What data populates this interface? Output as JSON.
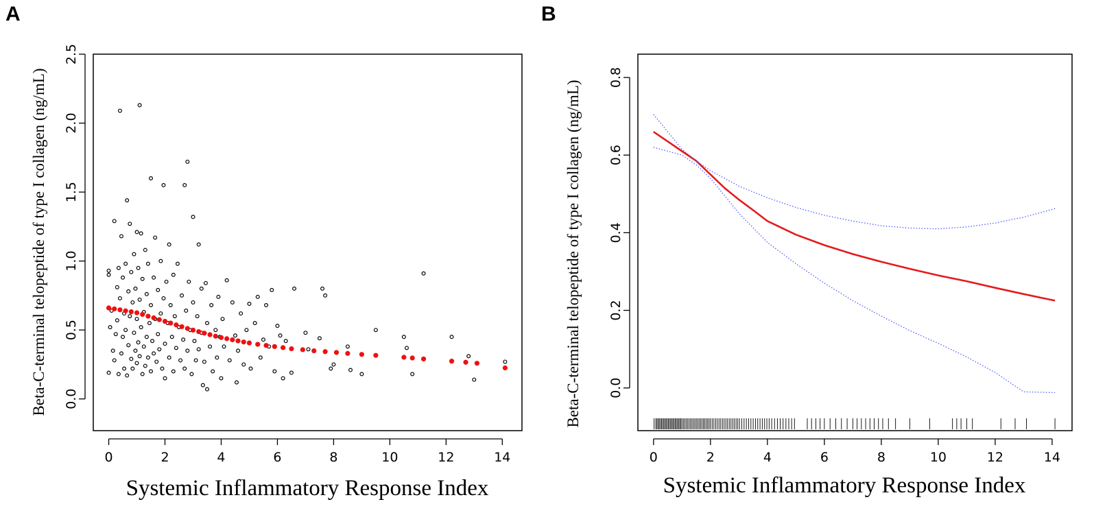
{
  "panels": {
    "a": {
      "label": "A"
    },
    "b": {
      "label": "B"
    }
  },
  "colors": {
    "fit": "#e41a1c",
    "ci": "#4f5bff",
    "points": "#000000",
    "fitted_points": "#ee1111",
    "axis": "#000000"
  },
  "chart_data": [
    {
      "type": "scatter",
      "panel": "A",
      "xlabel": "Systemic Inflammatory Response Index",
      "ylabel": "Beta-C-terminal telopeptide of type I collagen (ng/mL)",
      "xlim": [
        -0.55,
        14.7
      ],
      "ylim": [
        -0.23,
        2.5
      ],
      "xticks": [
        0,
        2,
        4,
        6,
        8,
        10,
        12,
        14
      ],
      "yticks": [
        0.0,
        0.5,
        1.0,
        1.5,
        2.0,
        2.5
      ],
      "ytick_labels": [
        "0.0",
        "0.5",
        "1.0",
        "1.5",
        "2.0",
        "2.5"
      ],
      "series": [
        {
          "name": "observed",
          "marker": "open-circle",
          "points": [
            [
              0.0,
              0.93
            ],
            [
              0.0,
              0.9
            ],
            [
              0.0,
              0.19
            ],
            [
              0.05,
              0.52
            ],
            [
              0.1,
              0.64
            ],
            [
              0.15,
              0.35
            ],
            [
              0.2,
              1.29
            ],
            [
              0.2,
              0.28
            ],
            [
              0.25,
              0.47
            ],
            [
              0.3,
              0.81
            ],
            [
              0.3,
              0.57
            ],
            [
              0.35,
              0.95
            ],
            [
              0.35,
              0.18
            ],
            [
              0.4,
              2.09
            ],
            [
              0.4,
              0.73
            ],
            [
              0.45,
              1.18
            ],
            [
              0.45,
              0.33
            ],
            [
              0.5,
              0.88
            ],
            [
              0.5,
              0.45
            ],
            [
              0.55,
              0.62
            ],
            [
              0.55,
              0.22
            ],
            [
              0.6,
              0.98
            ],
            [
              0.6,
              0.5
            ],
            [
              0.65,
              1.44
            ],
            [
              0.65,
              0.17
            ],
            [
              0.7,
              0.78
            ],
            [
              0.7,
              0.39
            ],
            [
              0.75,
              1.27
            ],
            [
              0.75,
              0.6
            ],
            [
              0.8,
              0.29
            ],
            [
              0.8,
              0.92
            ],
            [
              0.85,
              0.7
            ],
            [
              0.85,
              0.22
            ],
            [
              0.9,
              1.05
            ],
            [
              0.9,
              0.48
            ],
            [
              0.95,
              0.35
            ],
            [
              0.95,
              0.8
            ],
            [
              1.0,
              1.21
            ],
            [
              1.0,
              0.58
            ],
            [
              1.0,
              0.26
            ],
            [
              1.05,
              0.95
            ],
            [
              1.05,
              0.41
            ],
            [
              1.1,
              2.13
            ],
            [
              1.1,
              0.72
            ],
            [
              1.1,
              0.31
            ],
            [
              1.15,
              1.2
            ],
            [
              1.15,
              0.52
            ],
            [
              1.2,
              0.18
            ],
            [
              1.2,
              0.87
            ],
            [
              1.25,
              0.63
            ],
            [
              1.25,
              0.38
            ],
            [
              1.3,
              1.08
            ],
            [
              1.3,
              0.24
            ],
            [
              1.35,
              0.76
            ],
            [
              1.35,
              0.45
            ],
            [
              1.4,
              0.98
            ],
            [
              1.4,
              0.3
            ],
            [
              1.45,
              0.55
            ],
            [
              1.5,
              1.6
            ],
            [
              1.5,
              0.68
            ],
            [
              1.5,
              0.2
            ],
            [
              1.55,
              0.42
            ],
            [
              1.6,
              0.88
            ],
            [
              1.6,
              0.33
            ],
            [
              1.65,
              1.17
            ],
            [
              1.65,
              0.58
            ],
            [
              1.7,
              0.27
            ],
            [
              1.75,
              0.79
            ],
            [
              1.75,
              0.47
            ],
            [
              1.8,
              0.36
            ],
            [
              1.85,
              1.0
            ],
            [
              1.85,
              0.62
            ],
            [
              1.9,
              0.22
            ],
            [
              1.95,
              1.55
            ],
            [
              1.95,
              0.73
            ],
            [
              2.0,
              0.4
            ],
            [
              2.0,
              0.15
            ],
            [
              2.05,
              0.85
            ],
            [
              2.1,
              0.55
            ],
            [
              2.15,
              1.12
            ],
            [
              2.15,
              0.3
            ],
            [
              2.2,
              0.68
            ],
            [
              2.25,
              0.45
            ],
            [
              2.3,
              0.9
            ],
            [
              2.3,
              0.2
            ],
            [
              2.35,
              0.6
            ],
            [
              2.4,
              0.37
            ],
            [
              2.45,
              0.98
            ],
            [
              2.5,
              0.52
            ],
            [
              2.55,
              0.28
            ],
            [
              2.6,
              0.75
            ],
            [
              2.65,
              0.43
            ],
            [
              2.7,
              1.55
            ],
            [
              2.7,
              0.22
            ],
            [
              2.75,
              0.64
            ],
            [
              2.8,
              1.72
            ],
            [
              2.8,
              0.35
            ],
            [
              2.85,
              0.85
            ],
            [
              2.9,
              0.5
            ],
            [
              2.95,
              0.18
            ],
            [
              3.0,
              1.32
            ],
            [
              3.0,
              0.7
            ],
            [
              3.05,
              0.42
            ],
            [
              3.1,
              0.28
            ],
            [
              3.15,
              0.6
            ],
            [
              3.2,
              1.12
            ],
            [
              3.2,
              0.36
            ],
            [
              3.3,
              0.8
            ],
            [
              3.3,
              0.48
            ],
            [
              3.35,
              0.1
            ],
            [
              3.4,
              0.27
            ],
            [
              3.45,
              0.84
            ],
            [
              3.5,
              0.55
            ],
            [
              3.5,
              0.07
            ],
            [
              3.6,
              0.38
            ],
            [
              3.65,
              0.68
            ],
            [
              3.7,
              0.2
            ],
            [
              3.8,
              0.5
            ],
            [
              3.85,
              0.3
            ],
            [
              3.9,
              0.74
            ],
            [
              3.95,
              0.45
            ],
            [
              4.0,
              0.15
            ],
            [
              4.05,
              0.58
            ],
            [
              4.1,
              0.38
            ],
            [
              4.2,
              0.86
            ],
            [
              4.3,
              0.28
            ],
            [
              4.4,
              0.7
            ],
            [
              4.5,
              0.46
            ],
            [
              4.55,
              0.12
            ],
            [
              4.6,
              0.35
            ],
            [
              4.7,
              0.62
            ],
            [
              4.8,
              0.25
            ],
            [
              4.9,
              0.5
            ],
            [
              5.0,
              0.69
            ],
            [
              5.05,
              0.22
            ],
            [
              5.2,
              0.55
            ],
            [
              5.3,
              0.74
            ],
            [
              5.4,
              0.3
            ],
            [
              5.5,
              0.43
            ],
            [
              5.6,
              0.68
            ],
            [
              5.7,
              0.38
            ],
            [
              5.8,
              0.79
            ],
            [
              5.9,
              0.2
            ],
            [
              6.0,
              0.53
            ],
            [
              6.1,
              0.46
            ],
            [
              6.2,
              0.15
            ],
            [
              6.3,
              0.42
            ],
            [
              6.5,
              0.19
            ],
            [
              6.6,
              0.8
            ],
            [
              7.0,
              0.48
            ],
            [
              7.1,
              0.36
            ],
            [
              7.5,
              0.44
            ],
            [
              7.6,
              0.8
            ],
            [
              7.7,
              0.75
            ],
            [
              7.9,
              0.22
            ],
            [
              8.0,
              0.25
            ],
            [
              8.5,
              0.38
            ],
            [
              8.6,
              0.21
            ],
            [
              9.0,
              0.18
            ],
            [
              9.5,
              0.5
            ],
            [
              10.5,
              0.45
            ],
            [
              10.6,
              0.37
            ],
            [
              10.8,
              0.18
            ],
            [
              11.2,
              0.91
            ],
            [
              12.2,
              0.45
            ],
            [
              12.8,
              0.31
            ],
            [
              13.0,
              0.14
            ],
            [
              14.1,
              0.27
            ]
          ]
        },
        {
          "name": "fitted",
          "marker": "filled-circle",
          "color": "#ee1111",
          "points": [
            [
              0.0,
              0.66
            ],
            [
              0.2,
              0.653
            ],
            [
              0.4,
              0.646
            ],
            [
              0.6,
              0.639
            ],
            [
              0.8,
              0.632
            ],
            [
              1.0,
              0.625
            ],
            [
              1.2,
              0.613
            ],
            [
              1.4,
              0.6
            ],
            [
              1.6,
              0.588
            ],
            [
              1.8,
              0.575
            ],
            [
              2.0,
              0.563
            ],
            [
              2.2,
              0.55
            ],
            [
              2.4,
              0.537
            ],
            [
              2.6,
              0.524
            ],
            [
              2.8,
              0.511
            ],
            [
              3.0,
              0.499
            ],
            [
              3.2,
              0.488
            ],
            [
              3.4,
              0.477
            ],
            [
              3.6,
              0.466
            ],
            [
              3.8,
              0.455
            ],
            [
              4.0,
              0.445
            ],
            [
              4.2,
              0.437
            ],
            [
              4.4,
              0.429
            ],
            [
              4.6,
              0.421
            ],
            [
              4.8,
              0.413
            ],
            [
              5.0,
              0.406
            ],
            [
              5.3,
              0.396
            ],
            [
              5.6,
              0.388
            ],
            [
              5.9,
              0.38
            ],
            [
              6.2,
              0.372
            ],
            [
              6.5,
              0.364
            ],
            [
              6.9,
              0.357
            ],
            [
              7.3,
              0.349
            ],
            [
              7.7,
              0.343
            ],
            [
              8.1,
              0.337
            ],
            [
              8.5,
              0.33
            ],
            [
              9.0,
              0.323
            ],
            [
              9.5,
              0.316
            ],
            [
              10.5,
              0.302
            ],
            [
              10.8,
              0.297
            ],
            [
              11.2,
              0.29
            ],
            [
              12.2,
              0.274
            ],
            [
              12.7,
              0.266
            ],
            [
              13.1,
              0.259
            ],
            [
              14.1,
              0.225
            ]
          ]
        }
      ]
    },
    {
      "type": "line",
      "panel": "B",
      "xlabel": "Systemic Inflammatory Response Index",
      "ylabel": "Beta-C-terminal telopeptide of type I collagen (ng/mL)",
      "xlim": [
        -0.55,
        14.7
      ],
      "ylim": [
        -0.11,
        0.86
      ],
      "xticks": [
        0,
        2,
        4,
        6,
        8,
        10,
        12,
        14
      ],
      "yticks": [
        0.0,
        0.2,
        0.4,
        0.6,
        0.8
      ],
      "ytick_labels": [
        "0.0",
        "0.2",
        "0.4",
        "0.6",
        "0.8"
      ],
      "series": [
        {
          "name": "fit",
          "style": "solid",
          "x": [
            0,
            0.5,
            1,
            1.5,
            2,
            2.5,
            3,
            3.5,
            4,
            5,
            6,
            7,
            8,
            9,
            10,
            11,
            12,
            13,
            14.1
          ],
          "values": [
            0.66,
            0.635,
            0.61,
            0.585,
            0.55,
            0.515,
            0.485,
            0.458,
            0.43,
            0.395,
            0.368,
            0.345,
            0.325,
            0.307,
            0.29,
            0.275,
            0.258,
            0.242,
            0.225
          ]
        },
        {
          "name": "upper 95% CI",
          "style": "dotted",
          "x": [
            0,
            0.5,
            1,
            1.5,
            2,
            3,
            4,
            5,
            6,
            7,
            8,
            9,
            10,
            11,
            12,
            13,
            14.1
          ],
          "values": [
            0.705,
            0.66,
            0.615,
            0.585,
            0.56,
            0.52,
            0.49,
            0.465,
            0.445,
            0.43,
            0.418,
            0.412,
            0.41,
            0.415,
            0.425,
            0.44,
            0.462
          ]
        },
        {
          "name": "lower 95% CI",
          "style": "dotted",
          "x": [
            0,
            0.5,
            1,
            1.5,
            2,
            3,
            4,
            5,
            6,
            7,
            8,
            9,
            10,
            11,
            12,
            13,
            14.1
          ],
          "values": [
            0.62,
            0.61,
            0.6,
            0.575,
            0.54,
            0.45,
            0.375,
            0.32,
            0.27,
            0.225,
            0.185,
            0.148,
            0.115,
            0.08,
            0.04,
            -0.01,
            -0.012
          ]
        }
      ],
      "rug": [
        0.02,
        0.08,
        0.12,
        0.16,
        0.2,
        0.24,
        0.28,
        0.32,
        0.36,
        0.4,
        0.44,
        0.48,
        0.52,
        0.56,
        0.6,
        0.64,
        0.68,
        0.72,
        0.76,
        0.8,
        0.84,
        0.88,
        0.92,
        0.96,
        1.0,
        1.05,
        1.1,
        1.15,
        1.2,
        1.25,
        1.3,
        1.35,
        1.4,
        1.45,
        1.5,
        1.55,
        1.6,
        1.65,
        1.7,
        1.75,
        1.8,
        1.85,
        1.9,
        1.95,
        2.0,
        2.06,
        2.12,
        2.18,
        2.24,
        2.3,
        2.36,
        2.42,
        2.48,
        2.54,
        2.6,
        2.66,
        2.72,
        2.78,
        2.84,
        2.9,
        2.96,
        3.02,
        3.1,
        3.18,
        3.26,
        3.34,
        3.42,
        3.5,
        3.58,
        3.66,
        3.74,
        3.82,
        3.9,
        3.98,
        4.06,
        4.15,
        4.25,
        4.35,
        4.45,
        4.55,
        4.65,
        4.75,
        4.85,
        4.95,
        5.4,
        5.55,
        5.7,
        5.85,
        6.0,
        6.2,
        6.4,
        6.6,
        6.8,
        7.0,
        7.15,
        7.3,
        7.45,
        7.6,
        7.75,
        7.9,
        8.05,
        8.25,
        8.5,
        9.0,
        9.7,
        10.5,
        10.65,
        10.8,
        11.0,
        11.2,
        12.2,
        12.7,
        13.1,
        14.1
      ]
    }
  ]
}
